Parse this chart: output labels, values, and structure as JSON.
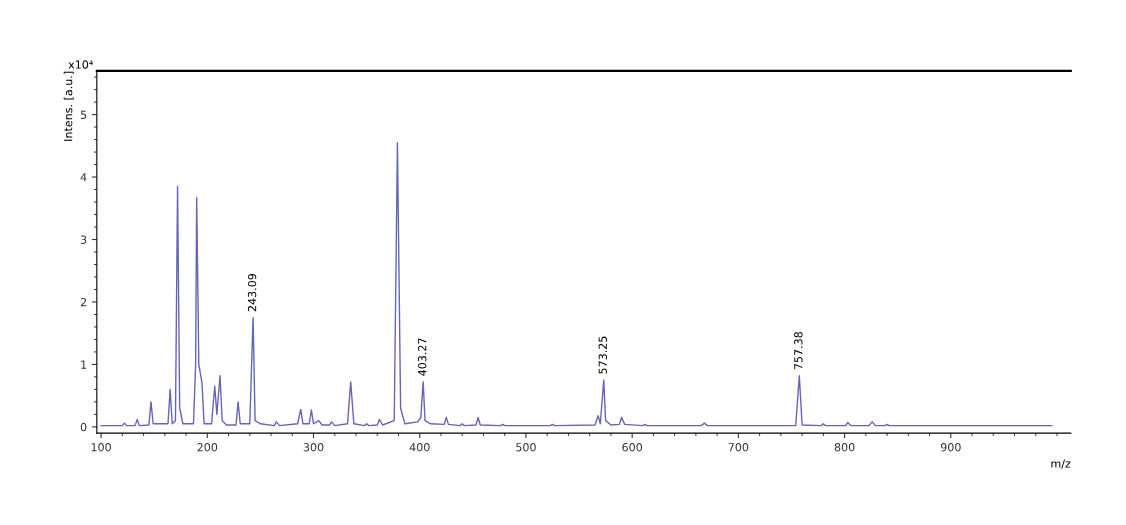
{
  "chart_data": {
    "type": "line",
    "xlabel": "m/z",
    "ylabel": "Intens. [a.u.]",
    "xlim": [
      96,
      1013
    ],
    "xticks": [
      100,
      200,
      300,
      400,
      500,
      600,
      700,
      800,
      900
    ],
    "ylim": [
      -0.1,
      5.7
    ],
    "yticks": [
      0,
      1,
      2,
      3,
      4,
      5
    ],
    "grid": false,
    "marker": "none",
    "line_style": "solid",
    "annotations": [
      "x10⁴",
      {
        "text": "243.09",
        "x": 243.09,
        "y": 1.75
      },
      {
        "text": "403.27",
        "x": 403.27,
        "y": 0.72
      },
      {
        "text": "573.25",
        "x": 573.25,
        "y": 0.75
      },
      {
        "text": "757.38",
        "x": 757.38,
        "y": 0.82
      }
    ],
    "series": [
      {
        "color": "#6464b8",
        "x": [
          100,
          120,
          122,
          124,
          132,
          134,
          136,
          145,
          147,
          149,
          163,
          165,
          167,
          170,
          172,
          174,
          177,
          187,
          189,
          190,
          192,
          195,
          197,
          204,
          207,
          209,
          212,
          214,
          218,
          227,
          229,
          231,
          240,
          243.09,
          245,
          250,
          263,
          265,
          268,
          285,
          288,
          290,
          296,
          298,
          300,
          305,
          308,
          315,
          317,
          320,
          332,
          335,
          338,
          348,
          350,
          352,
          360,
          362,
          365,
          376,
          379,
          382,
          386,
          398,
          401,
          403.27,
          405,
          410,
          423,
          425,
          427,
          438,
          440,
          442,
          453,
          455,
          457,
          476,
          478,
          480,
          523,
          525,
          527,
          565,
          568,
          570,
          573.25,
          575,
          580,
          588,
          590,
          593,
          610,
          612,
          614,
          665,
          668,
          671,
          754,
          757.38,
          760,
          778,
          780,
          782,
          801,
          803,
          806,
          823,
          826,
          829,
          838,
          840,
          842,
          995
        ],
        "values": [
          0.02,
          0.02,
          0.06,
          0.02,
          0.02,
          0.12,
          0.02,
          0.03,
          0.4,
          0.05,
          0.05,
          0.6,
          0.05,
          0.1,
          3.85,
          0.3,
          0.05,
          0.05,
          1.0,
          3.67,
          1.0,
          0.7,
          0.05,
          0.05,
          0.65,
          0.2,
          0.82,
          0.1,
          0.03,
          0.03,
          0.4,
          0.05,
          0.05,
          1.75,
          0.1,
          0.05,
          0.02,
          0.08,
          0.02,
          0.05,
          0.28,
          0.05,
          0.05,
          0.27,
          0.05,
          0.1,
          0.03,
          0.03,
          0.08,
          0.02,
          0.05,
          0.72,
          0.05,
          0.02,
          0.05,
          0.02,
          0.03,
          0.12,
          0.03,
          0.1,
          4.55,
          0.3,
          0.05,
          0.08,
          0.15,
          0.72,
          0.1,
          0.05,
          0.04,
          0.15,
          0.04,
          0.02,
          0.05,
          0.02,
          0.03,
          0.15,
          0.03,
          0.02,
          0.04,
          0.02,
          0.02,
          0.04,
          0.02,
          0.03,
          0.18,
          0.05,
          0.75,
          0.1,
          0.03,
          0.04,
          0.15,
          0.04,
          0.02,
          0.04,
          0.02,
          0.02,
          0.06,
          0.02,
          0.02,
          0.82,
          0.03,
          0.02,
          0.05,
          0.02,
          0.02,
          0.07,
          0.02,
          0.02,
          0.08,
          0.02,
          0.02,
          0.04,
          0.02,
          0.02
        ]
      }
    ]
  }
}
